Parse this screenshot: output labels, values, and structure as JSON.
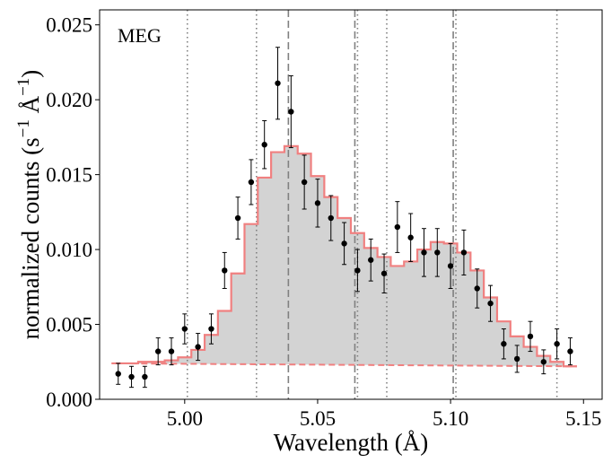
{
  "chart_data": {
    "type": "step-histogram-with-errorbars",
    "annotation": "MEG",
    "xlabel": "Wavelength (Å)",
    "ylabel_main": "normalized counts (s",
    "ylabel_sup1": "−1",
    "ylabel_mid": " Å",
    "ylabel_sup2": "−1",
    "ylabel_end": ")",
    "xlim": [
      4.968,
      5.157
    ],
    "ylim": [
      0.0,
      0.026
    ],
    "xticks": [
      {
        "value": 5.0,
        "label": "5.00"
      },
      {
        "value": 5.05,
        "label": "5.05"
      },
      {
        "value": 5.1,
        "label": "5.10"
      },
      {
        "value": 5.15,
        "label": "5.15"
      }
    ],
    "yticks": [
      {
        "value": 0.0,
        "label": "0.000"
      },
      {
        "value": 0.005,
        "label": "0.005"
      },
      {
        "value": 0.01,
        "label": "0.010"
      },
      {
        "value": 0.015,
        "label": "0.015"
      },
      {
        "value": 0.02,
        "label": "0.020"
      },
      {
        "value": 0.025,
        "label": "0.025"
      }
    ],
    "colors": {
      "model": "#f08080",
      "fill": "#d3d3d3",
      "points": "#000000",
      "reference_lines": "#808080"
    },
    "model_bin_edges": [
      4.9725,
      4.9775,
      4.9825,
      4.9875,
      4.9925,
      4.9975,
      5.0025,
      5.0075,
      5.0125,
      5.0175,
      5.0225,
      5.0275,
      5.0325,
      5.0375,
      5.0425,
      5.0475,
      5.0525,
      5.0575,
      5.0625,
      5.0675,
      5.0725,
      5.0775,
      5.0825,
      5.0875,
      5.0925,
      5.0975,
      5.1025,
      5.1075,
      5.1125,
      5.1175,
      5.1225,
      5.1275,
      5.1325,
      5.1375,
      5.1425,
      5.1475
    ],
    "model_values": [
      0.0024,
      0.0024,
      0.0025,
      0.0025,
      0.0026,
      0.0028,
      0.0033,
      0.0043,
      0.0059,
      0.0084,
      0.0117,
      0.0148,
      0.0165,
      0.0169,
      0.0164,
      0.0149,
      0.0135,
      0.0121,
      0.0111,
      0.0101,
      0.0095,
      0.0089,
      0.0092,
      0.01,
      0.0105,
      0.0104,
      0.0098,
      0.0086,
      0.0068,
      0.0052,
      0.0042,
      0.0035,
      0.0029,
      0.0025,
      0.0022
    ],
    "continuum": {
      "x": [
        4.9725,
        5.1475
      ],
      "y": [
        0.0024,
        0.0022
      ]
    },
    "observed": [
      {
        "x": 4.975,
        "y": 0.0017,
        "err": 0.0007
      },
      {
        "x": 4.98,
        "y": 0.0015,
        "err": 0.0007
      },
      {
        "x": 4.985,
        "y": 0.0015,
        "err": 0.0007
      },
      {
        "x": 4.99,
        "y": 0.0032,
        "err": 0.0009
      },
      {
        "x": 4.995,
        "y": 0.0032,
        "err": 0.0009
      },
      {
        "x": 5.0,
        "y": 0.0047,
        "err": 0.001
      },
      {
        "x": 5.005,
        "y": 0.0035,
        "err": 0.0009
      },
      {
        "x": 5.01,
        "y": 0.0047,
        "err": 0.001
      },
      {
        "x": 5.015,
        "y": 0.0086,
        "err": 0.0012
      },
      {
        "x": 5.02,
        "y": 0.0121,
        "err": 0.0014
      },
      {
        "x": 5.025,
        "y": 0.0145,
        "err": 0.0015
      },
      {
        "x": 5.03,
        "y": 0.017,
        "err": 0.0016
      },
      {
        "x": 5.035,
        "y": 0.0211,
        "err": 0.0024
      },
      {
        "x": 5.04,
        "y": 0.0192,
        "err": 0.0024
      },
      {
        "x": 5.045,
        "y": 0.0145,
        "err": 0.0018
      },
      {
        "x": 5.05,
        "y": 0.0131,
        "err": 0.0016
      },
      {
        "x": 5.055,
        "y": 0.0121,
        "err": 0.0015
      },
      {
        "x": 5.06,
        "y": 0.0104,
        "err": 0.0014
      },
      {
        "x": 5.065,
        "y": 0.0086,
        "err": 0.0014
      },
      {
        "x": 5.07,
        "y": 0.0093,
        "err": 0.0014
      },
      {
        "x": 5.075,
        "y": 0.0084,
        "err": 0.0013
      },
      {
        "x": 5.08,
        "y": 0.0115,
        "err": 0.0017
      },
      {
        "x": 5.085,
        "y": 0.0108,
        "err": 0.0016
      },
      {
        "x": 5.09,
        "y": 0.0098,
        "err": 0.0016
      },
      {
        "x": 5.095,
        "y": 0.0098,
        "err": 0.0016
      },
      {
        "x": 5.1,
        "y": 0.0089,
        "err": 0.0015
      },
      {
        "x": 5.105,
        "y": 0.0098,
        "err": 0.0015
      },
      {
        "x": 5.11,
        "y": 0.0074,
        "err": 0.0013
      },
      {
        "x": 5.115,
        "y": 0.0064,
        "err": 0.0012
      },
      {
        "x": 5.12,
        "y": 0.0037,
        "err": 0.001
      },
      {
        "x": 5.125,
        "y": 0.0027,
        "err": 0.0009
      },
      {
        "x": 5.13,
        "y": 0.0042,
        "err": 0.001
      },
      {
        "x": 5.135,
        "y": 0.0025,
        "err": 0.0008
      },
      {
        "x": 5.14,
        "y": 0.0037,
        "err": 0.001
      },
      {
        "x": 5.145,
        "y": 0.0032,
        "err": 0.0009
      }
    ],
    "dotted_lines": [
      5.001,
      5.027,
      5.065,
      5.076,
      5.102,
      5.14
    ],
    "dashed_lines": [
      5.039,
      5.064,
      5.101
    ]
  }
}
